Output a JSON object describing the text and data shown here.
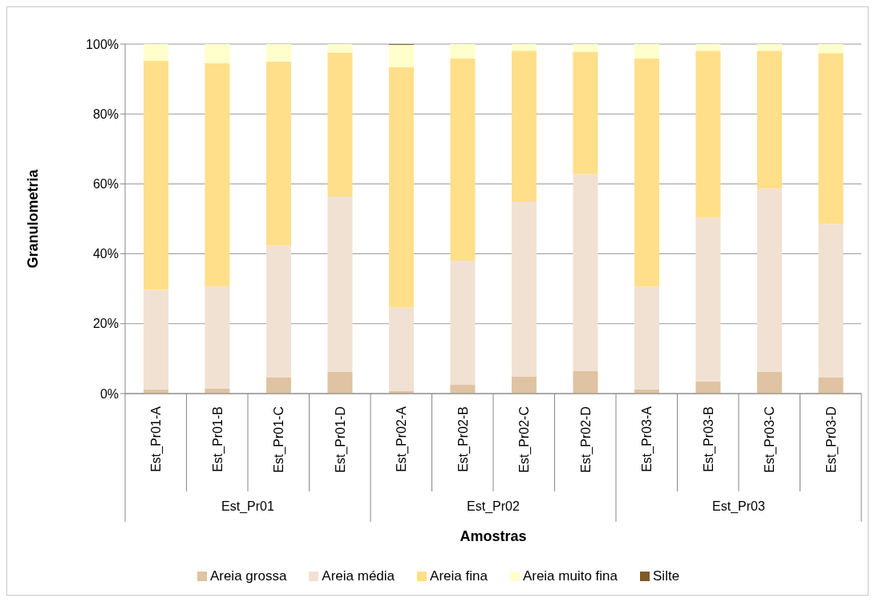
{
  "chart_data": {
    "type": "bar",
    "stacked": true,
    "xlabel": "Amostras",
    "ylabel": "Granulometria",
    "categories": [
      "Est_Pr01-A",
      "Est_Pr01-B",
      "Est_Pr01-C",
      "Est_Pr01-D",
      "Est_Pr02-A",
      "Est_Pr02-B",
      "Est_Pr02-C",
      "Est_Pr02-D",
      "Est_Pr03-A",
      "Est_Pr03-B",
      "Est_Pr03-C",
      "Est_Pr03-D"
    ],
    "series": [
      {
        "name": "Areia grossa",
        "color": "#dfc3a2",
        "values": [
          1.2,
          1.4,
          4.6,
          6.2,
          0.7,
          2.5,
          4.8,
          6.4,
          1.2,
          3.5,
          6.2,
          4.6
        ]
      },
      {
        "name": "Areia média",
        "color": "#f1e1d3",
        "values": [
          28.5,
          29.3,
          37.7,
          50.2,
          23.9,
          35.6,
          50.0,
          56.4,
          29.4,
          46.8,
          52.4,
          43.9
        ]
      },
      {
        "name": "Areia fina",
        "color": "#ffdf8a",
        "values": [
          65.5,
          63.8,
          52.7,
          41.2,
          68.8,
          57.8,
          43.3,
          35.0,
          65.3,
          47.8,
          39.5,
          48.9
        ]
      },
      {
        "name": "Areia muito fina",
        "color": "#ffffcc",
        "values": [
          4.8,
          5.5,
          5.0,
          2.4,
          6.4,
          4.1,
          1.9,
          2.2,
          4.1,
          1.9,
          1.9,
          2.6
        ]
      },
      {
        "name": "Silte",
        "color": "#7f5a2a",
        "values": [
          0,
          0,
          0,
          0,
          0.2,
          0,
          0,
          0,
          0,
          0,
          0,
          0
        ]
      }
    ],
    "ylim": [
      0,
      100
    ],
    "yticks": [
      {
        "value": 0,
        "label": "0%"
      },
      {
        "value": 20,
        "label": "20%"
      },
      {
        "value": 40,
        "label": "40%"
      },
      {
        "value": 60,
        "label": "60%"
      },
      {
        "value": 80,
        "label": "80%"
      },
      {
        "value": 100,
        "label": "100%"
      }
    ],
    "annotations": [
      "Est_Pr01",
      "Est_Pr02",
      "Est_Pr03"
    ],
    "grid": "y",
    "legend": "bottom"
  }
}
